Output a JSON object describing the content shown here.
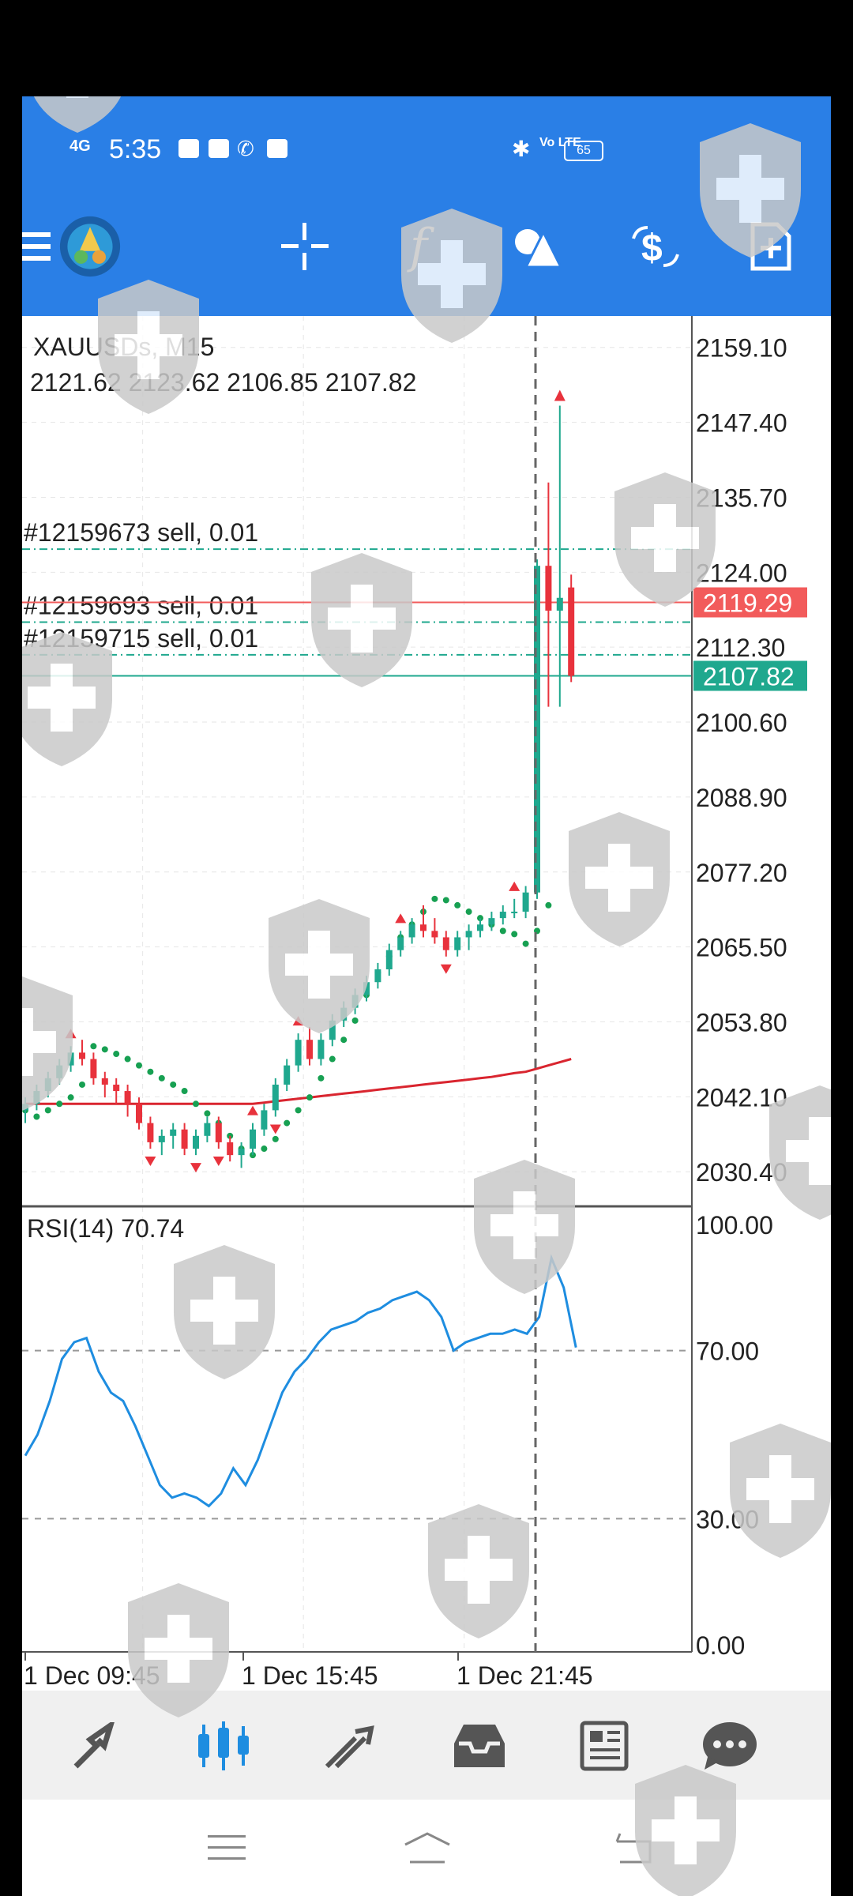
{
  "status_bar": {
    "network": "4G",
    "time": "5:35",
    "lte": "Vo LTE",
    "battery": "65"
  },
  "toolbar": {
    "icons": [
      "menu-icon",
      "app-logo-icon",
      "crosshair-icon",
      "indicators-icon",
      "objects-icon",
      "trade-icon",
      "new-order-icon"
    ],
    "indicator_label": "f"
  },
  "chart": {
    "symbol_label": "XAUUSDs, M15",
    "ohlc_label": "2121.62 2123.62 2106.85 2107.82",
    "price_axis": [
      "2159.10",
      "2147.40",
      "2135.70",
      "2124.00",
      "2112.30",
      "2100.60",
      "2088.90",
      "2077.20",
      "2065.50",
      "2053.80",
      "2042.10",
      "2030.40"
    ],
    "bid_price": "2107.82",
    "ask_price": "2119.29",
    "orders": [
      {
        "label": "#12159673 sell, 0.01",
        "price": 2127.6
      },
      {
        "label": "#12159693 sell, 0.01",
        "price": 2116.2
      },
      {
        "label": "#12159715 sell, 0.01",
        "price": 2111.1
      }
    ],
    "colors": {
      "bull": "#1fa88e",
      "bear": "#e8323c",
      "sar": "#17a052",
      "ma": "#d9252f",
      "rsi": "#1e8de0",
      "bid": "#1fa88e",
      "ask": "#f25b5b"
    }
  },
  "chart_data": {
    "type": "line",
    "title": "XAUUSDs, M15",
    "ylim": [
      2025,
      2164
    ],
    "x_labels": [
      "1 Dec 09:45",
      "1 Dec 15:45",
      "1 Dec 21:45"
    ],
    "candles": [
      [
        2040,
        2042,
        2038,
        2041
      ],
      [
        2041,
        2044,
        2040,
        2043
      ],
      [
        2043,
        2046,
        2042,
        2045
      ],
      [
        2045,
        2048,
        2044,
        2047
      ],
      [
        2047,
        2050,
        2046,
        2049
      ],
      [
        2049,
        2051,
        2047,
        2048
      ],
      [
        2048,
        2049,
        2044,
        2045
      ],
      [
        2045,
        2046,
        2042,
        2044
      ],
      [
        2044,
        2045,
        2041,
        2043
      ],
      [
        2043,
        2044,
        2039,
        2041
      ],
      [
        2041,
        2042,
        2037,
        2038
      ],
      [
        2038,
        2039,
        2034,
        2035
      ],
      [
        2035,
        2037,
        2033,
        2036
      ],
      [
        2036,
        2038,
        2034,
        2037
      ],
      [
        2037,
        2038,
        2033,
        2034
      ],
      [
        2034,
        2037,
        2033,
        2036
      ],
      [
        2036,
        2039,
        2035,
        2038
      ],
      [
        2038,
        2039,
        2034,
        2035
      ],
      [
        2035,
        2036,
        2032,
        2033
      ],
      [
        2033,
        2035,
        2031,
        2034
      ],
      [
        2034,
        2038,
        2033,
        2037
      ],
      [
        2037,
        2041,
        2036,
        2040
      ],
      [
        2040,
        2045,
        2039,
        2044
      ],
      [
        2044,
        2048,
        2043,
        2047
      ],
      [
        2047,
        2052,
        2046,
        2051
      ],
      [
        2051,
        2053,
        2047,
        2048
      ],
      [
        2048,
        2052,
        2047,
        2051
      ],
      [
        2051,
        2055,
        2050,
        2054
      ],
      [
        2054,
        2057,
        2053,
        2056
      ],
      [
        2056,
        2059,
        2055,
        2058
      ],
      [
        2058,
        2061,
        2057,
        2060
      ],
      [
        2060,
        2063,
        2059,
        2062
      ],
      [
        2062,
        2066,
        2061,
        2065
      ],
      [
        2065,
        2068,
        2064,
        2067
      ],
      [
        2067,
        2070,
        2066,
        2069
      ],
      [
        2069,
        2072,
        2067,
        2068
      ],
      [
        2068,
        2070,
        2066,
        2067
      ],
      [
        2067,
        2068,
        2064,
        2065
      ],
      [
        2065,
        2068,
        2064,
        2067
      ],
      [
        2067,
        2069,
        2065,
        2068
      ],
      [
        2068,
        2070,
        2067,
        2069
      ],
      [
        2069,
        2071,
        2068,
        2070
      ],
      [
        2070,
        2072,
        2069,
        2071
      ],
      [
        2071,
        2073,
        2070,
        2071
      ],
      [
        2071,
        2075,
        2070,
        2074
      ],
      [
        2074,
        2126,
        2073,
        2125
      ],
      [
        2125,
        2138,
        2103,
        2118
      ],
      [
        2118,
        2150,
        2103,
        2120
      ],
      [
        2121.62,
        2123.62,
        2106.85,
        2107.82
      ]
    ],
    "rsi": {
      "name": "RSI(14) 70.74",
      "ylim": [
        0,
        100
      ],
      "levels": [
        30,
        70
      ],
      "values": [
        45,
        50,
        58,
        68,
        72,
        73,
        65,
        60,
        58,
        52,
        45,
        38,
        35,
        36,
        35,
        33,
        36,
        42,
        38,
        44,
        52,
        60,
        65,
        68,
        72,
        75,
        76,
        77,
        79,
        80,
        82,
        83,
        84,
        82,
        78,
        70,
        72,
        73,
        74,
        74,
        75,
        74,
        78,
        92,
        85,
        70.74
      ]
    },
    "sar": [
      2040,
      2039,
      2040,
      2041,
      2042,
      2044,
      2050,
      2049.5,
      2048.8,
      2048,
      2047,
      2046,
      2045,
      2044,
      2043,
      2041,
      2039.5,
      2038,
      2036,
      2034,
      2033,
      2034,
      2035.5,
      2038,
      2040,
      2042,
      2045,
      2048,
      2051,
      2054,
      2058,
      2061.5,
      2064,
      2067,
      2069,
      2071,
      2073,
      2072.8,
      2072,
      2071,
      2070,
      2069,
      2068,
      2067.5,
      2066,
      2068,
      2072
    ],
    "ma": [
      2041,
      2041,
      2041,
      2041,
      2041,
      2041,
      2041,
      2041,
      2041,
      2041,
      2041,
      2041,
      2041,
      2041,
      2041,
      2041,
      2041,
      2041,
      2041,
      2041,
      2041,
      2041.2,
      2041.4,
      2041.6,
      2041.8,
      2042,
      2042.2,
      2042.4,
      2042.6,
      2042.8,
      2043,
      2043.2,
      2043.4,
      2043.6,
      2043.8,
      2044,
      2044.2,
      2044.4,
      2044.6,
      2044.8,
      2045,
      2045.2,
      2045.5,
      2045.8,
      2046,
      2046.5,
      2047,
      2047.5,
      2048
    ]
  },
  "rsi_axis": [
    "100.00",
    "70.00",
    "30.00",
    "0.00"
  ],
  "time_axis": [
    "1 Dec 09:45",
    "1 Dec 15:45",
    "1 Dec 21:45"
  ],
  "bottom_nav": [
    "quotes-icon",
    "chart-icon",
    "trade-icon",
    "history-icon",
    "news-icon",
    "messages-icon"
  ],
  "system_nav": [
    "recents-icon",
    "home-icon",
    "back-icon"
  ]
}
